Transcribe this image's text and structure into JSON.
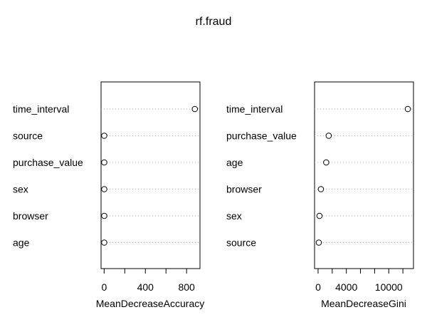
{
  "title": "rf.fraud",
  "chart_data": [
    {
      "type": "scatter",
      "variant": "dotchart",
      "xlabel": "MeanDecreaseAccuracy",
      "ylabel": "",
      "xlim": [
        -30,
        930
      ],
      "xticks": [
        0,
        200,
        400,
        600,
        800
      ],
      "xtick_labels": [
        "0",
        "",
        "400",
        "",
        "800"
      ],
      "categories": [
        "time_interval",
        "source",
        "purchase_value",
        "sex",
        "browser",
        "age"
      ],
      "values": [
        880,
        1,
        1,
        1,
        1,
        1
      ],
      "grid": "dotted horizontal guide lines",
      "marker": "open circle"
    },
    {
      "type": "scatter",
      "variant": "dotchart",
      "xlabel": "MeanDecreaseGini",
      "ylabel": "",
      "xlim": [
        -500,
        13500
      ],
      "xticks": [
        0,
        2000,
        4000,
        6000,
        8000,
        10000,
        12000
      ],
      "xtick_labels": [
        "0",
        "",
        "4000",
        "",
        "",
        "10000",
        ""
      ],
      "categories": [
        "time_interval",
        "purchase_value",
        "age",
        "browser",
        "sex",
        "source"
      ],
      "values": [
        12700,
        1500,
        1150,
        400,
        200,
        100
      ],
      "grid": "dotted horizontal guide lines",
      "marker": "open circle"
    }
  ]
}
